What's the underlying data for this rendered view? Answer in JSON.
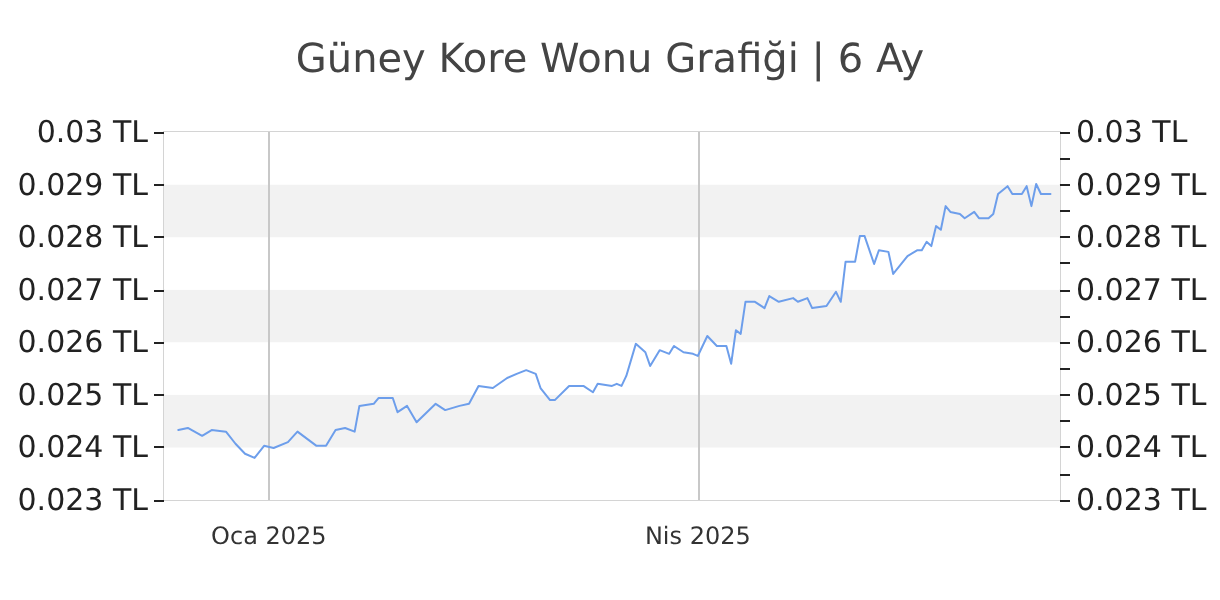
{
  "chart_data": {
    "type": "line",
    "title": "Güney Kore Wonu Grafiği | 6 Ay",
    "x": [
      "2024-12-13",
      "2024-12-15",
      "2024-12-18",
      "2024-12-20",
      "2024-12-23",
      "2024-12-25",
      "2024-12-27",
      "2024-12-29",
      "2024-12-31",
      "2025-01-02",
      "2025-01-05",
      "2025-01-07",
      "2025-01-11",
      "2025-01-13",
      "2025-01-15",
      "2025-01-17",
      "2025-01-19",
      "2025-01-20",
      "2025-01-23",
      "2025-01-24",
      "2025-01-27",
      "2025-01-28",
      "2025-01-30",
      "2025-02-01",
      "2025-02-05",
      "2025-02-07",
      "2025-02-10",
      "2025-02-12",
      "2025-02-14",
      "2025-02-17",
      "2025-02-20",
      "2025-02-22",
      "2025-02-24",
      "2025-02-26",
      "2025-02-27",
      "2025-03-01",
      "2025-03-02",
      "2025-03-05",
      "2025-03-08",
      "2025-03-10",
      "2025-03-11",
      "2025-03-14",
      "2025-03-15",
      "2025-03-16",
      "2025-03-17",
      "2025-03-19",
      "2025-03-21",
      "2025-03-22",
      "2025-03-24",
      "2025-03-26",
      "2025-03-27",
      "2025-03-29",
      "2025-03-31",
      "2025-04-01",
      "2025-04-03",
      "2025-04-05",
      "2025-04-07",
      "2025-04-08",
      "2025-04-09",
      "2025-04-10",
      "2025-04-11",
      "2025-04-13",
      "2025-04-15",
      "2025-04-16",
      "2025-04-18",
      "2025-04-21",
      "2025-04-22",
      "2025-04-24",
      "2025-04-25",
      "2025-04-28",
      "2025-04-30",
      "2025-05-01",
      "2025-05-02",
      "2025-05-04",
      "2025-05-05",
      "2025-05-06",
      "2025-05-08",
      "2025-05-09",
      "2025-05-11",
      "2025-05-12",
      "2025-05-15",
      "2025-05-17",
      "2025-05-18",
      "2025-05-19",
      "2025-05-20",
      "2025-05-21",
      "2025-05-22",
      "2025-05-23",
      "2025-05-24",
      "2025-05-26",
      "2025-05-27",
      "2025-05-29",
      "2025-05-30",
      "2025-06-01",
      "2025-06-02",
      "2025-06-03",
      "2025-06-05",
      "2025-06-06",
      "2025-06-08",
      "2025-06-09",
      "2025-06-10",
      "2025-06-11",
      "2025-06-12",
      "2025-06-14"
    ],
    "series": [
      {
        "color": "#6d9eeb",
        "values": [
          0.02433,
          0.02437,
          0.02422,
          0.02433,
          0.0243,
          0.02407,
          0.02388,
          0.0238,
          0.02403,
          0.02399,
          0.0241,
          0.0243,
          0.02403,
          0.02403,
          0.02433,
          0.02437,
          0.0243,
          0.02479,
          0.02483,
          0.02494,
          0.02494,
          0.02467,
          0.02479,
          0.02448,
          0.02483,
          0.02471,
          0.02479,
          0.02483,
          0.02517,
          0.02513,
          0.02532,
          0.0254,
          0.02547,
          0.0254,
          0.02513,
          0.0249,
          0.0249,
          0.02517,
          0.02517,
          0.02505,
          0.02521,
          0.02517,
          0.02521,
          0.02517,
          0.02536,
          0.02597,
          0.02581,
          0.02555,
          0.02585,
          0.02578,
          0.02593,
          0.02581,
          0.02578,
          0.02574,
          0.02612,
          0.02593,
          0.02593,
          0.02559,
          0.02623,
          0.02616,
          0.02677,
          0.02677,
          0.02665,
          0.02688,
          0.02677,
          0.02684,
          0.02677,
          0.02684,
          0.02665,
          0.02669,
          0.02696,
          0.02677,
          0.02753,
          0.02753,
          0.02802,
          0.02802,
          0.02749,
          0.02775,
          0.02772,
          0.0273,
          0.02764,
          0.02775,
          0.02775,
          0.02791,
          0.02783,
          0.02821,
          0.02814,
          0.02859,
          0.02848,
          0.02844,
          0.02836,
          0.02848,
          0.02836,
          0.02836,
          0.02844,
          0.02882,
          0.02897,
          0.02882,
          0.02882,
          0.02897,
          0.02859,
          0.02901,
          0.02882,
          0.02882
        ]
      }
    ],
    "xlim": [
      "2024-12-10",
      "2025-06-16"
    ],
    "xticks": [
      {
        "value": "2025-01-01",
        "label": "Oca 2025"
      },
      {
        "value": "2025-04-01",
        "label": "Nis 2025"
      }
    ],
    "ylim": [
      0.023,
      0.03
    ],
    "yticks": [
      {
        "value": 0.023,
        "label": "0.023 TL"
      },
      {
        "value": 0.024,
        "label": "0.024 TL"
      },
      {
        "value": 0.025,
        "label": "0.025 TL"
      },
      {
        "value": 0.026,
        "label": "0.026 TL"
      },
      {
        "value": 0.027,
        "label": "0.027 TL"
      },
      {
        "value": 0.028,
        "label": "0.028 TL"
      },
      {
        "value": 0.029,
        "label": "0.029 TL"
      },
      {
        "value": 0.03,
        "label": "0.03 TL"
      }
    ],
    "y2lim": [
      0.023,
      0.03
    ],
    "y2ticks": [
      {
        "value": 0.023,
        "label": "0.023 TL"
      },
      {
        "value": 0.0235,
        "label": null
      },
      {
        "value": 0.024,
        "label": "0.024 TL"
      },
      {
        "value": 0.0245,
        "label": null
      },
      {
        "value": 0.025,
        "label": "0.025 TL"
      },
      {
        "value": 0.0255,
        "label": null
      },
      {
        "value": 0.026,
        "label": "0.026 TL"
      },
      {
        "value": 0.0265,
        "label": null
      },
      {
        "value": 0.027,
        "label": "0.027 TL"
      },
      {
        "value": 0.0275,
        "label": null
      },
      {
        "value": 0.028,
        "label": "0.028 TL"
      },
      {
        "value": 0.0285,
        "label": null
      },
      {
        "value": 0.029,
        "label": "0.029 TL"
      },
      {
        "value": 0.0295,
        "label": null
      },
      {
        "value": 0.03,
        "label": "0.03 TL"
      }
    ],
    "grid": true,
    "marker": "none",
    "line_style": "solid"
  }
}
